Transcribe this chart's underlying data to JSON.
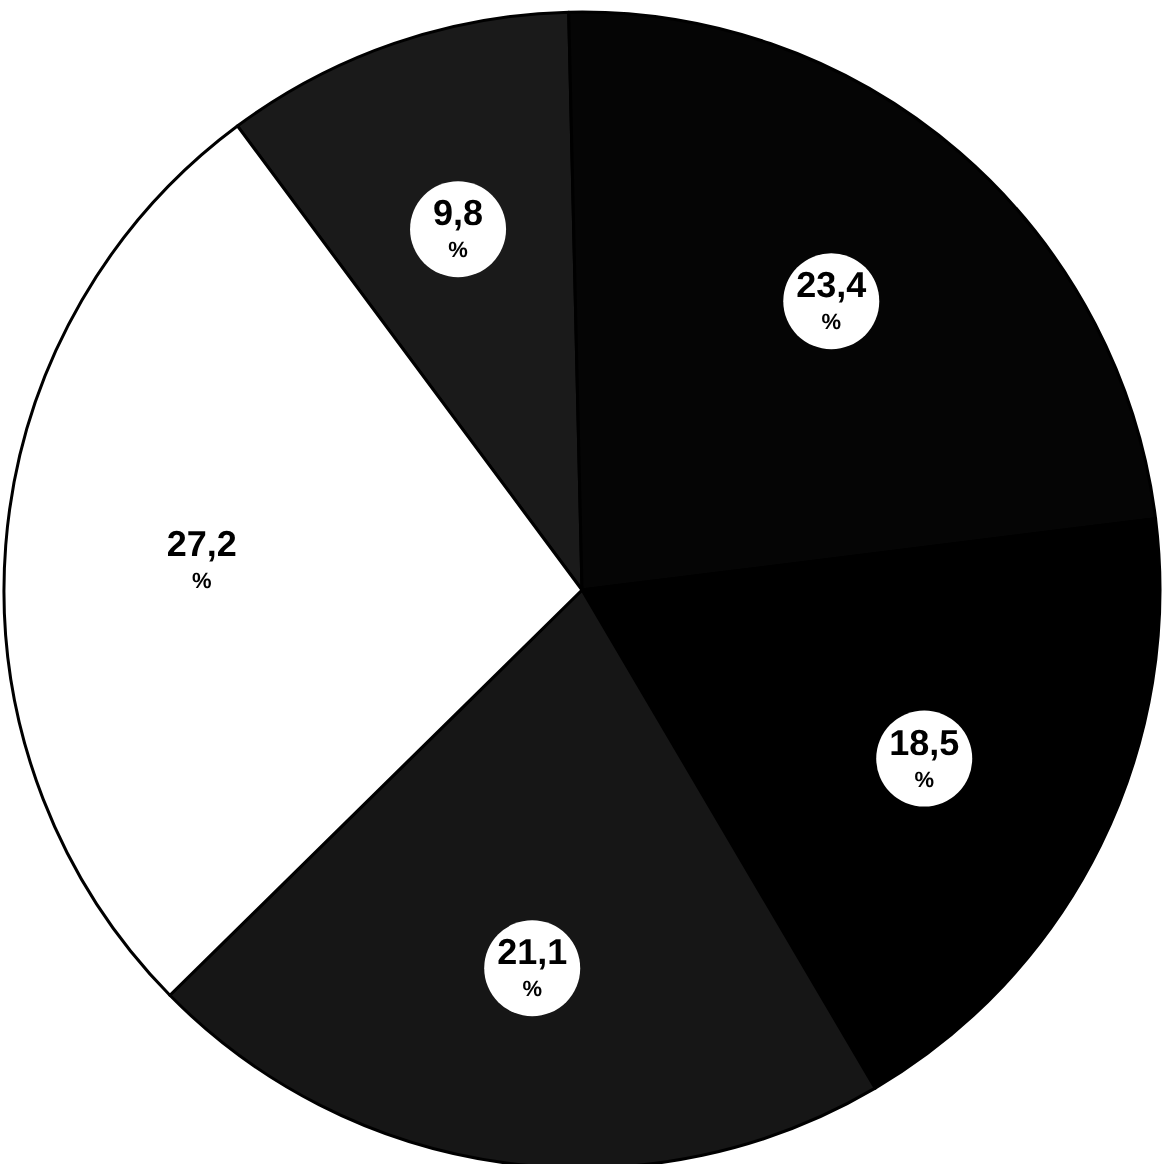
{
  "chart_data": {
    "type": "pie",
    "categories": [
      null,
      null,
      null,
      null,
      null
    ],
    "values": [
      9.8,
      23.4,
      18.5,
      21.1,
      27.2
    ],
    "colors": [
      "#1a1a1a",
      "#050505",
      "#000000",
      "#161616",
      "#ffffff"
    ],
    "value_labels": [
      "9,8 %",
      "23,4 %",
      "18,5 %",
      "21,1 %",
      "27,2 %"
    ]
  }
}
